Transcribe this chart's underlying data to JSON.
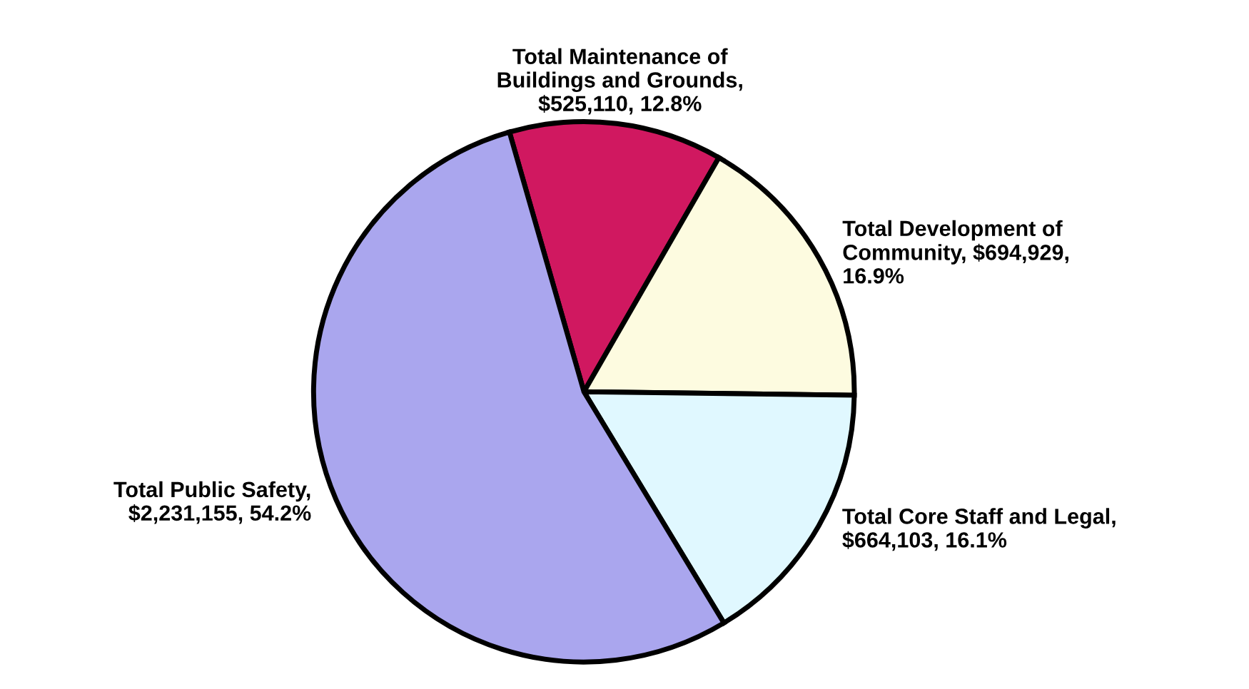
{
  "chart_data": {
    "type": "pie",
    "categories": [
      "Total Maintenance of\nBuildings and Grounds,\n$525,110, 12.8%",
      "Total Development of\nCommunity, $694,929,\n16.9%",
      "Total Core Staff and Legal,\n$664,103, 16.1%",
      "Total Public Safety,\n$2,231,155, 54.2%"
    ],
    "values": [
      525110,
      694929,
      664103,
      2231155
    ],
    "colors": [
      "#d01860",
      "#fdfbe0",
      "#e0f8ff",
      "#aaa6ee"
    ]
  }
}
